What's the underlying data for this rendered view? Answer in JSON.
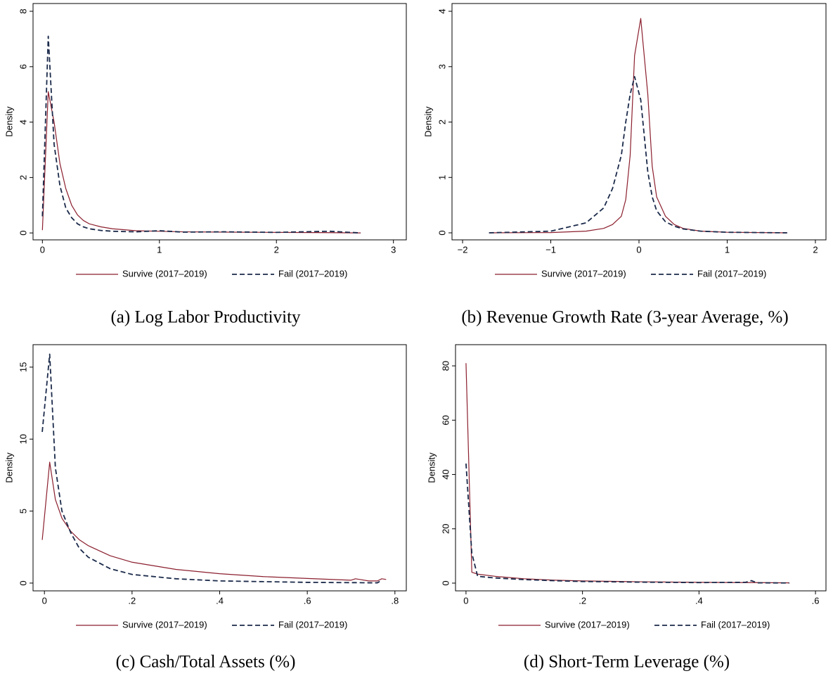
{
  "chart_data": [
    {
      "type": "line",
      "caption": "(a) Log Labor Productivity",
      "ylabel": "Density",
      "legend": "bottom",
      "xlim": [
        -0.08,
        3.11
      ],
      "ylim": [
        -0.25,
        8.28
      ],
      "xticks": [
        0,
        1,
        2,
        3
      ],
      "yticks": [
        0,
        2,
        4,
        6,
        8
      ],
      "x": [
        0,
        0.05,
        0.1,
        0.15,
        0.2,
        0.25,
        0.3,
        0.35,
        0.4,
        0.5,
        0.6,
        0.8,
        1.0,
        1.2,
        1.55,
        2.0,
        2.45,
        2.72
      ],
      "series": [
        {
          "name": "Survive (2017–2019)",
          "color": "#8b1f2e",
          "dash": false,
          "values": [
            0.1,
            5.1,
            4.0,
            2.5,
            1.6,
            1.0,
            0.65,
            0.45,
            0.33,
            0.22,
            0.15,
            0.08,
            0.06,
            0.04,
            0.03,
            0.02,
            0.01,
            0
          ]
        },
        {
          "name": "Fail (2017–2019)",
          "color": "#1b2a4a",
          "dash": true,
          "values": [
            0.6,
            7.1,
            3.2,
            1.7,
            0.9,
            0.55,
            0.33,
            0.22,
            0.15,
            0.09,
            0.06,
            0.04,
            0.08,
            0.03,
            0.04,
            0.02,
            0.06,
            0
          ]
        }
      ]
    },
    {
      "type": "line",
      "caption": "(b) Revenue Growth Rate (3-year Average, %)",
      "ylabel": "Density",
      "legend": "bottom",
      "xlim": [
        -2.12,
        2.12
      ],
      "ylim": [
        -0.127,
        4.14
      ],
      "xticks": [
        {
          "value": -2,
          "label": "−2"
        },
        {
          "value": -1,
          "label": "−1"
        },
        0,
        1,
        2
      ],
      "yticks": [
        0,
        1,
        2,
        3,
        4
      ],
      "x": [
        -1.7,
        -1,
        -0.6,
        -0.4,
        -0.3,
        -0.2,
        -0.15,
        -0.1,
        -0.05,
        0.02,
        0.1,
        0.15,
        0.2,
        0.3,
        0.4,
        0.5,
        0.7,
        1.0,
        1.68
      ],
      "series": [
        {
          "name": "Survive (2017–2019)",
          "color": "#8b1f2e",
          "dash": false,
          "values": [
            0,
            0.005,
            0.03,
            0.08,
            0.15,
            0.3,
            0.6,
            1.4,
            3.2,
            3.87,
            2.5,
            1.2,
            0.65,
            0.3,
            0.15,
            0.08,
            0.03,
            0.01,
            0
          ]
        },
        {
          "name": "Fail (2017–2019)",
          "color": "#1b2a4a",
          "dash": true,
          "values": [
            0,
            0.03,
            0.18,
            0.45,
            0.8,
            1.4,
            2.0,
            2.5,
            2.82,
            2.4,
            1.1,
            0.65,
            0.4,
            0.2,
            0.12,
            0.07,
            0.03,
            0.01,
            0
          ]
        }
      ]
    },
    {
      "type": "line",
      "caption": "(c) Cash/Total Assets (%)",
      "ylabel": "Density",
      "legend": "bottom",
      "xlim": [
        -0.026,
        0.826
      ],
      "ylim": [
        -0.54,
        16.56
      ],
      "xticks": [
        0,
        {
          "value": 0.2,
          "label": ".2"
        },
        {
          "value": 0.4,
          "label": ".4"
        },
        {
          "value": 0.6,
          "label": ".6"
        },
        {
          "value": 0.8,
          "label": ".8"
        }
      ],
      "yticks": [
        0,
        5,
        10,
        15
      ],
      "x": [
        -0.005,
        0.012,
        0.025,
        0.04,
        0.06,
        0.08,
        0.1,
        0.15,
        0.2,
        0.3,
        0.4,
        0.5,
        0.6,
        0.7,
        0.71,
        0.74,
        0.76,
        0.77,
        0.78
      ],
      "series": [
        {
          "name": "Survive (2017–2019)",
          "color": "#8b1f2e",
          "dash": false,
          "values": [
            3.0,
            8.4,
            5.8,
            4.5,
            3.6,
            3.0,
            2.6,
            1.9,
            1.45,
            0.95,
            0.65,
            0.45,
            0.32,
            0.2,
            0.3,
            0.15,
            0.15,
            0.3,
            0.25
          ]
        },
        {
          "name": "Fail (2017–2019)",
          "color": "#1b2a4a",
          "dash": true,
          "values": [
            10.5,
            15.9,
            8.0,
            5.0,
            3.5,
            2.4,
            1.8,
            1.0,
            0.6,
            0.3,
            0.15,
            0.1,
            0.05,
            0.03,
            0.03,
            0.02,
            0.02,
            0.2,
            null
          ]
        }
      ]
    },
    {
      "type": "line",
      "caption": "(d) Short-Term Leverage (%)",
      "ylabel": "Density",
      "legend": "bottom",
      "xlim": [
        -0.018,
        0.618
      ],
      "ylim": [
        -2.85,
        87.8
      ],
      "xticks": [
        0,
        {
          "value": 0.2,
          "label": ".2"
        },
        {
          "value": 0.4,
          "label": ".4"
        },
        {
          "value": 0.6,
          "label": ".6"
        }
      ],
      "yticks": [
        0,
        20,
        40,
        60,
        80
      ],
      "x": [
        0,
        0.01,
        0.02,
        0.05,
        0.1,
        0.15,
        0.2,
        0.3,
        0.4,
        0.48,
        0.49,
        0.5,
        0.555
      ],
      "series": [
        {
          "name": "Survive (2017–2019)",
          "color": "#8b1f2e",
          "dash": false,
          "values": [
            81,
            4,
            3.3,
            2.5,
            1.6,
            1.1,
            0.8,
            0.5,
            0.3,
            0.2,
            0.2,
            0.2,
            0.1
          ]
        },
        {
          "name": "Fail (2017–2019)",
          "color": "#1b2a4a",
          "dash": true,
          "values": [
            44,
            11,
            2.5,
            1.9,
            1.3,
            0.9,
            0.6,
            0.35,
            0.2,
            0.3,
            0.9,
            0.1,
            0.05
          ]
        }
      ]
    }
  ]
}
